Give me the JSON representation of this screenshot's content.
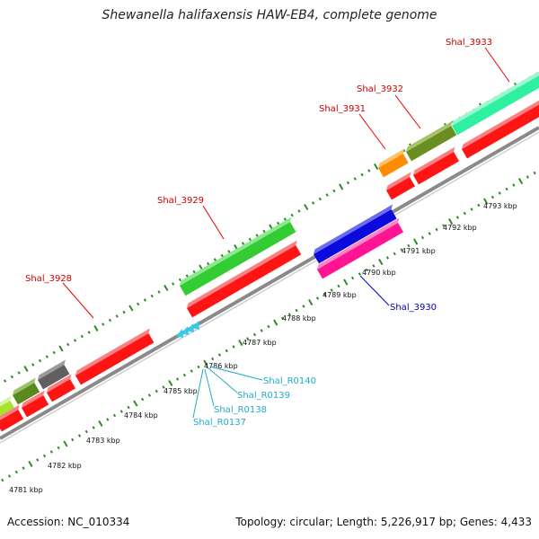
{
  "title": "Shewanella halifaxensis HAW-EB4, complete genome",
  "footer": {
    "accession": "Accession: NC_010334",
    "summary": "Topology: circular; Length: 5,226,917 bp; Genes: 4,433"
  },
  "colors": {
    "backbone": "#777777",
    "tick": "#2e8b22",
    "tick_label": "#111111",
    "gene_label_protein": "#cc0000",
    "gene_label_reverse": "#0000aa",
    "gene_label_rna": "#22aacc",
    "cds": "#ff1414",
    "rrna": "#33ccee"
  },
  "kbp_labels": [
    "4781 kbp",
    "4782 kbp",
    "4783 kbp",
    "4784 kbp",
    "4785 kbp",
    "4786 kbp",
    "4787 kbp",
    "4788 kbp",
    "4789 kbp",
    "4790 kbp",
    "4791 kbp",
    "4792 kbp",
    "4793 kbp"
  ],
  "gene_labels": {
    "shal_3928": "Shal_3928",
    "shal_3929": "Shal_3929",
    "shal_3930": "Shal_3930",
    "shal_3931": "Shal_3931",
    "shal_3932": "Shal_3932",
    "shal_3933": "Shal_3933",
    "shal_r0137": "Shal_R0137",
    "shal_r0138": "Shal_R0138",
    "shal_r0139": "Shal_R0139",
    "shal_r0140": "Shal_R0140"
  },
  "feature_colors": {
    "lime": "#a6e22e",
    "olive": "#5a8a1e",
    "gray": "#606060",
    "green": "#33cc33",
    "blue": "#0a0adc",
    "magenta": "#ff1493",
    "orange": "#ff8c00",
    "olive2": "#6b8e23",
    "teal": "#2ef0a0"
  }
}
